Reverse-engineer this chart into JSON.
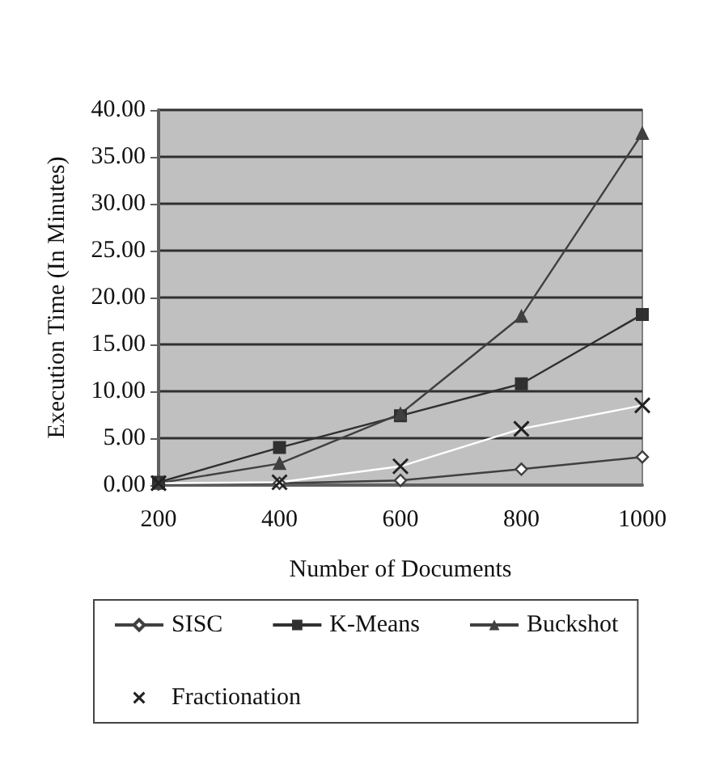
{
  "chart_data": {
    "type": "line",
    "xlabel": "Number of Documents",
    "ylabel": "Execution Time (In Minutes)",
    "categories": [
      "200",
      "400",
      "600",
      "800",
      "1000"
    ],
    "series": [
      {
        "name": "SISC",
        "color": "#404040",
        "marker": "diamond",
        "values": [
          0.1,
          0.2,
          0.5,
          1.7,
          3.0
        ]
      },
      {
        "name": "K-Means",
        "color": "#303030",
        "marker": "square",
        "values": [
          0.3,
          4.0,
          7.4,
          10.8,
          18.2
        ]
      },
      {
        "name": "Buckshot",
        "color": "#404040",
        "marker": "triangle",
        "values": [
          0.2,
          2.3,
          7.6,
          18.0,
          37.5
        ]
      },
      {
        "name": "Fractionation",
        "color": "#ffffff",
        "marker": "cross",
        "values": [
          0.2,
          0.3,
          2.0,
          6.0,
          8.5
        ]
      }
    ],
    "ylim": [
      0,
      40
    ],
    "yticks": [
      {
        "value": 0,
        "label": "0.00"
      },
      {
        "value": 5,
        "label": "5.00"
      },
      {
        "value": 10,
        "label": "10.00"
      },
      {
        "value": 15,
        "label": "15.00"
      },
      {
        "value": 20,
        "label": "20.00"
      },
      {
        "value": 25,
        "label": "25.00"
      },
      {
        "value": 30,
        "label": "30.00"
      },
      {
        "value": 35,
        "label": "35.00"
      },
      {
        "value": 40,
        "label": "40.00"
      }
    ],
    "grid": "y",
    "legend": "bottom"
  }
}
